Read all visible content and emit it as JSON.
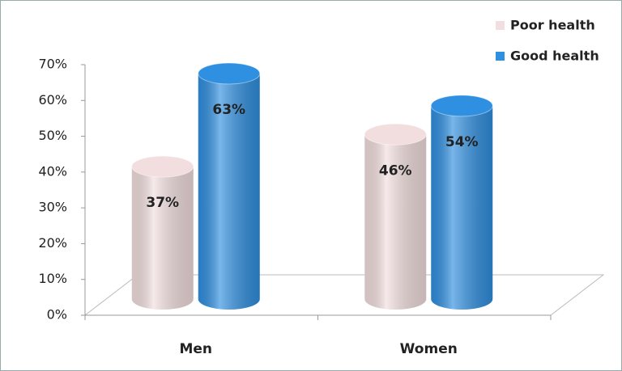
{
  "chart_data": {
    "type": "bar3d",
    "categories": [
      "Men",
      "Women"
    ],
    "series": [
      {
        "name": "Poor health",
        "color": "#f2dede",
        "values": [
          37,
          46
        ],
        "value_labels": [
          "37%",
          "46%"
        ]
      },
      {
        "name": "Good health",
        "color": "#2f8fe0",
        "values": [
          63,
          54
        ],
        "value_labels": [
          "63%",
          "54%"
        ]
      }
    ],
    "ylim": [
      0,
      70
    ],
    "yticks": [
      {
        "value": 0,
        "label": "0%"
      },
      {
        "value": 10,
        "label": "10%"
      },
      {
        "value": 20,
        "label": "20%"
      },
      {
        "value": 30,
        "label": "30%"
      },
      {
        "value": 40,
        "label": "40%"
      },
      {
        "value": 50,
        "label": "50%"
      },
      {
        "value": 60,
        "label": "60%"
      },
      {
        "value": 70,
        "label": "70%"
      }
    ],
    "legend": "top-right"
  }
}
